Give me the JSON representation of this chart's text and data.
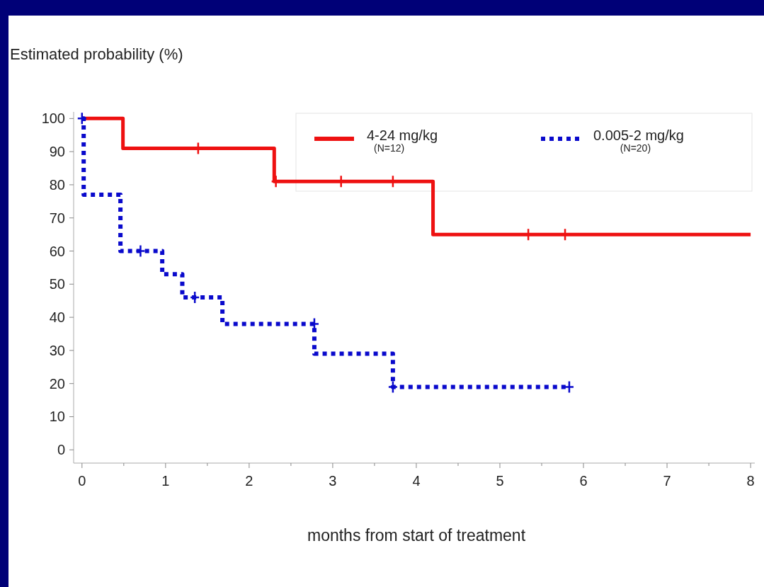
{
  "chart_data": {
    "type": "step",
    "ylabel": "Estimated probability (%)",
    "xlabel": "months from start of treatment",
    "xlim": [
      -0.1,
      8.05
    ],
    "ylim": [
      -4,
      102
    ],
    "xticks": [
      0,
      {
        "value": 0.5,
        "label": null
      },
      1,
      {
        "value": 1.5,
        "label": null
      },
      2,
      {
        "value": 2.5,
        "label": null
      },
      3,
      {
        "value": 3.5,
        "label": null
      },
      4,
      {
        "value": 4.5,
        "label": null
      },
      5,
      {
        "value": 5.5,
        "label": null
      },
      6,
      {
        "value": 6.5,
        "label": null
      },
      7,
      {
        "value": 7.5,
        "label": null
      },
      8
    ],
    "yticks": [
      0,
      10,
      20,
      30,
      40,
      50,
      60,
      70,
      80,
      90,
      100
    ],
    "grid": false,
    "legend": "top right",
    "series": [
      {
        "name": "4-24 mg/kg$_{(N=12)}$",
        "color": "#ee1111",
        "line_style": "solid",
        "x": [
          0,
          0.49,
          2.3,
          4.2,
          8
        ],
        "values": [
          100,
          91,
          81,
          65,
          65
        ]
      },
      {
        "name": "0.005-2 mg/kg$_{(N=20)}$",
        "color": "#0a0acc",
        "line_style": "dotted",
        "x": [
          0,
          0.02,
          0.46,
          0.96,
          1.2,
          1.68,
          2.78,
          3.72,
          5.83
        ],
        "values": [
          100,
          77,
          60,
          53,
          46,
          38,
          29,
          19,
          19
        ]
      },
      {
        "type": "scatter",
        "marker": "cross",
        "color": "#ee1111",
        "x": [
          1.39,
          2.32,
          3.1,
          3.72,
          5.34,
          5.78
        ],
        "values": [
          91,
          81,
          81,
          81,
          65,
          65
        ]
      },
      {
        "type": "scatter",
        "marker": "cross",
        "color": "#0a0acc",
        "x": [
          0,
          0.7,
          1.35,
          2.78,
          3.72,
          5.83
        ],
        "values": [
          100,
          60,
          46,
          38,
          19,
          19
        ]
      }
    ]
  }
}
